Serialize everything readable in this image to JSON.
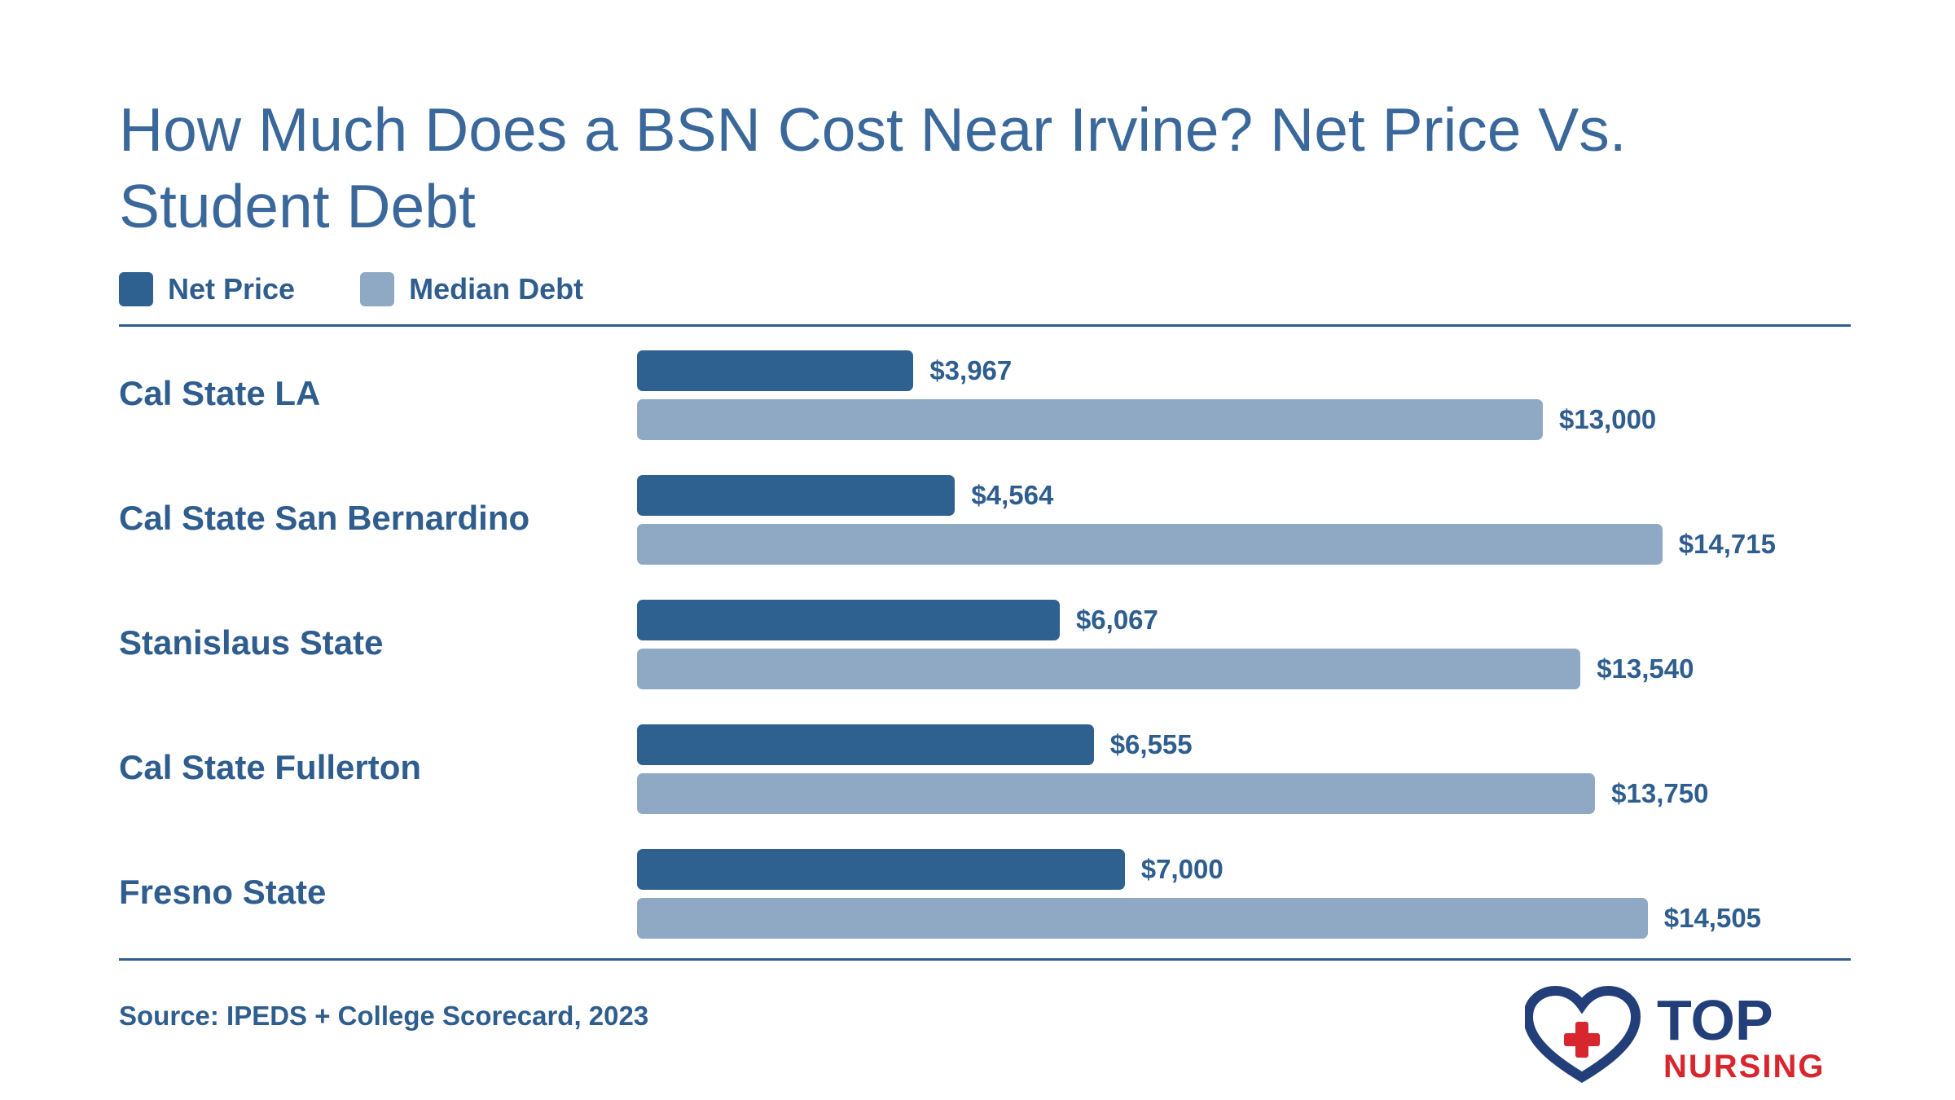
{
  "title": "How Much Does a BSN Cost Near Irvine? Net Price Vs. Student Debt",
  "legend": {
    "items": [
      {
        "label": "Net Price",
        "color": "#2e6090"
      },
      {
        "label": "Median Debt",
        "color": "#8fa9c4"
      }
    ]
  },
  "source": "Source: IPEDS + College Scorecard, 2023",
  "logo": {
    "word1": "TOP",
    "word2": "NURSING",
    "colors": {
      "navy": "#233f7a",
      "red": "#d7262e"
    },
    "icon": "heart-cross-icon"
  },
  "chart_data": {
    "type": "bar",
    "orientation": "horizontal",
    "categories": [
      "Cal State LA",
      "Cal State San Bernardino",
      "Stanislaus State",
      "Cal State Fullerton",
      "Fresno State"
    ],
    "series": [
      {
        "name": "Net Price",
        "color": "#2e6090",
        "values": [
          3967,
          4564,
          6067,
          6555,
          7000
        ],
        "labels": [
          "$3,967",
          "$4,564",
          "$6,067",
          "$6,555",
          "$7,000"
        ]
      },
      {
        "name": "Median Debt",
        "color": "#8fa9c4",
        "values": [
          13000,
          14715,
          13540,
          13750,
          14505
        ],
        "labels": [
          "$13,000",
          "$14,715",
          "$13,540",
          "$13,750",
          "$14,505"
        ]
      }
    ],
    "xlim": [
      0,
      16000
    ],
    "grid": false,
    "legend_position": "top-left"
  }
}
